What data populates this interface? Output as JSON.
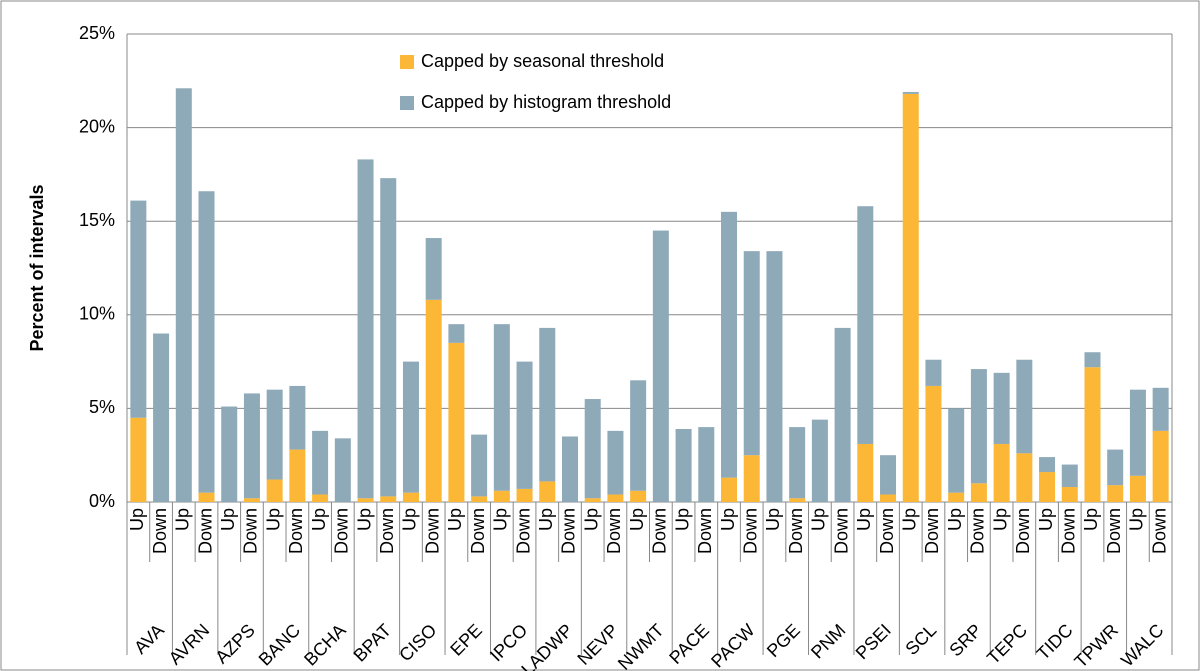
{
  "chart_data": {
    "type": "bar",
    "stacked": true,
    "y_label": "Percent of intervals",
    "groups": [
      "AVA",
      "AVRN",
      "AZPS",
      "BANC",
      "BCHA",
      "BPAT",
      "CISO",
      "EPE",
      "IPCO",
      "LADWP",
      "NEVP",
      "NWMT",
      "PACE",
      "PACW",
      "PGE",
      "PNM",
      "PSEI",
      "SCL",
      "SRP",
      "TEPC",
      "TIDC",
      "TPWR",
      "WALC"
    ],
    "categories": [
      "Up",
      "Down",
      "Up",
      "Down",
      "Up",
      "Down",
      "Up",
      "Down",
      "Up",
      "Down",
      "Up",
      "Down",
      "Up",
      "Down",
      "Up",
      "Down",
      "Up",
      "Down",
      "Up",
      "Down",
      "Up",
      "Down",
      "Up",
      "Down",
      "Up",
      "Down",
      "Up",
      "Down",
      "Up",
      "Down",
      "Up",
      "Down",
      "Up",
      "Down",
      "Up",
      "Down",
      "Up",
      "Down",
      "Up",
      "Down",
      "Up",
      "Down",
      "Up",
      "Down",
      "Up",
      "Down"
    ],
    "series": [
      {
        "name": "Capped by seasonal threshold",
        "color": "#fbb735",
        "values": [
          4.5,
          0,
          0,
          0.5,
          0,
          0.2,
          1.2,
          2.8,
          0.4,
          0,
          0.2,
          0.3,
          0.5,
          10.8,
          8.5,
          0.3,
          0.6,
          0.7,
          1.1,
          0,
          0.2,
          0.4,
          0.6,
          0,
          0,
          0,
          1.3,
          2.5,
          0,
          0.2,
          0,
          0,
          3.1,
          0.4,
          21.8,
          6.2,
          0.5,
          1.0,
          3.1,
          2.6,
          1.6,
          0.8,
          7.2,
          0.9,
          1.4,
          3.8
        ]
      },
      {
        "name": "Capped by histogram threshold",
        "color": "#8ea9b8",
        "values": [
          11.6,
          9.0,
          22.1,
          16.1,
          5.1,
          5.6,
          4.8,
          3.4,
          3.4,
          3.4,
          18.1,
          17.0,
          7.0,
          3.3,
          1.0,
          3.3,
          8.9,
          6.8,
          8.2,
          3.5,
          5.3,
          3.4,
          5.9,
          14.5,
          3.9,
          4.0,
          14.2,
          10.9,
          13.4,
          3.8,
          4.4,
          9.3,
          12.7,
          2.1,
          0.1,
          1.4,
          4.5,
          6.1,
          3.8,
          5.0,
          0.8,
          1.2,
          0.8,
          1.9,
          4.6,
          2.3
        ]
      }
    ],
    "ylim": [
      0,
      25
    ],
    "yticks": [
      {
        "value": 0,
        "label": "0%"
      },
      {
        "value": 5,
        "label": "5%"
      },
      {
        "value": 10,
        "label": "10%"
      },
      {
        "value": 15,
        "label": "15%"
      },
      {
        "value": 20,
        "label": "20%"
      },
      {
        "value": 25,
        "label": "25%"
      }
    ],
    "grid": true,
    "legend": "top"
  }
}
